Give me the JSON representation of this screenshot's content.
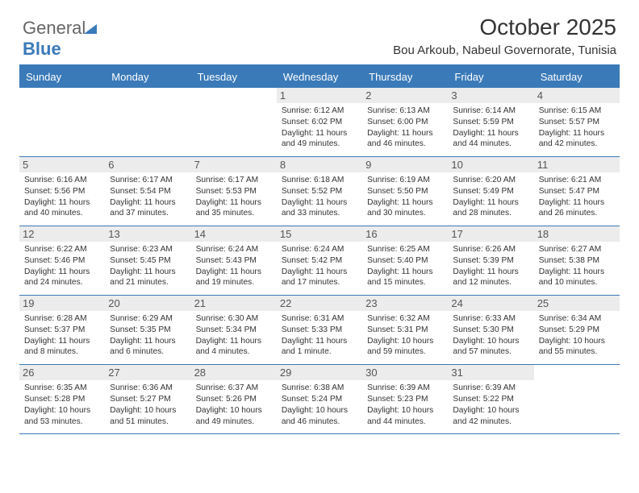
{
  "brand": {
    "general": "General",
    "blue": "Blue"
  },
  "title": "October 2025",
  "subtitle": "Bou Arkoub, Nabeul Governorate, Tunisia",
  "dayHeaders": [
    "Sunday",
    "Monday",
    "Tuesday",
    "Wednesday",
    "Thursday",
    "Friday",
    "Saturday"
  ],
  "colors": {
    "accent": "#3a7ab8",
    "headerText": "#ffffff",
    "dayBg": "#ececec",
    "text": "#333333"
  },
  "weeks": [
    [
      null,
      null,
      null,
      {
        "n": "1",
        "sunrise": "6:12 AM",
        "sunset": "6:02 PM",
        "daylight": "11 hours and 49 minutes."
      },
      {
        "n": "2",
        "sunrise": "6:13 AM",
        "sunset": "6:00 PM",
        "daylight": "11 hours and 46 minutes."
      },
      {
        "n": "3",
        "sunrise": "6:14 AM",
        "sunset": "5:59 PM",
        "daylight": "11 hours and 44 minutes."
      },
      {
        "n": "4",
        "sunrise": "6:15 AM",
        "sunset": "5:57 PM",
        "daylight": "11 hours and 42 minutes."
      }
    ],
    [
      {
        "n": "5",
        "sunrise": "6:16 AM",
        "sunset": "5:56 PM",
        "daylight": "11 hours and 40 minutes."
      },
      {
        "n": "6",
        "sunrise": "6:17 AM",
        "sunset": "5:54 PM",
        "daylight": "11 hours and 37 minutes."
      },
      {
        "n": "7",
        "sunrise": "6:17 AM",
        "sunset": "5:53 PM",
        "daylight": "11 hours and 35 minutes."
      },
      {
        "n": "8",
        "sunrise": "6:18 AM",
        "sunset": "5:52 PM",
        "daylight": "11 hours and 33 minutes."
      },
      {
        "n": "9",
        "sunrise": "6:19 AM",
        "sunset": "5:50 PM",
        "daylight": "11 hours and 30 minutes."
      },
      {
        "n": "10",
        "sunrise": "6:20 AM",
        "sunset": "5:49 PM",
        "daylight": "11 hours and 28 minutes."
      },
      {
        "n": "11",
        "sunrise": "6:21 AM",
        "sunset": "5:47 PM",
        "daylight": "11 hours and 26 minutes."
      }
    ],
    [
      {
        "n": "12",
        "sunrise": "6:22 AM",
        "sunset": "5:46 PM",
        "daylight": "11 hours and 24 minutes."
      },
      {
        "n": "13",
        "sunrise": "6:23 AM",
        "sunset": "5:45 PM",
        "daylight": "11 hours and 21 minutes."
      },
      {
        "n": "14",
        "sunrise": "6:24 AM",
        "sunset": "5:43 PM",
        "daylight": "11 hours and 19 minutes."
      },
      {
        "n": "15",
        "sunrise": "6:24 AM",
        "sunset": "5:42 PM",
        "daylight": "11 hours and 17 minutes."
      },
      {
        "n": "16",
        "sunrise": "6:25 AM",
        "sunset": "5:40 PM",
        "daylight": "11 hours and 15 minutes."
      },
      {
        "n": "17",
        "sunrise": "6:26 AM",
        "sunset": "5:39 PM",
        "daylight": "11 hours and 12 minutes."
      },
      {
        "n": "18",
        "sunrise": "6:27 AM",
        "sunset": "5:38 PM",
        "daylight": "11 hours and 10 minutes."
      }
    ],
    [
      {
        "n": "19",
        "sunrise": "6:28 AM",
        "sunset": "5:37 PM",
        "daylight": "11 hours and 8 minutes."
      },
      {
        "n": "20",
        "sunrise": "6:29 AM",
        "sunset": "5:35 PM",
        "daylight": "11 hours and 6 minutes."
      },
      {
        "n": "21",
        "sunrise": "6:30 AM",
        "sunset": "5:34 PM",
        "daylight": "11 hours and 4 minutes."
      },
      {
        "n": "22",
        "sunrise": "6:31 AM",
        "sunset": "5:33 PM",
        "daylight": "11 hours and 1 minute."
      },
      {
        "n": "23",
        "sunrise": "6:32 AM",
        "sunset": "5:31 PM",
        "daylight": "10 hours and 59 minutes."
      },
      {
        "n": "24",
        "sunrise": "6:33 AM",
        "sunset": "5:30 PM",
        "daylight": "10 hours and 57 minutes."
      },
      {
        "n": "25",
        "sunrise": "6:34 AM",
        "sunset": "5:29 PM",
        "daylight": "10 hours and 55 minutes."
      }
    ],
    [
      {
        "n": "26",
        "sunrise": "6:35 AM",
        "sunset": "5:28 PM",
        "daylight": "10 hours and 53 minutes."
      },
      {
        "n": "27",
        "sunrise": "6:36 AM",
        "sunset": "5:27 PM",
        "daylight": "10 hours and 51 minutes."
      },
      {
        "n": "28",
        "sunrise": "6:37 AM",
        "sunset": "5:26 PM",
        "daylight": "10 hours and 49 minutes."
      },
      {
        "n": "29",
        "sunrise": "6:38 AM",
        "sunset": "5:24 PM",
        "daylight": "10 hours and 46 minutes."
      },
      {
        "n": "30",
        "sunrise": "6:39 AM",
        "sunset": "5:23 PM",
        "daylight": "10 hours and 44 minutes."
      },
      {
        "n": "31",
        "sunrise": "6:39 AM",
        "sunset": "5:22 PM",
        "daylight": "10 hours and 42 minutes."
      },
      null
    ]
  ],
  "labels": {
    "sunrise": "Sunrise:",
    "sunset": "Sunset:",
    "daylight": "Daylight:"
  }
}
